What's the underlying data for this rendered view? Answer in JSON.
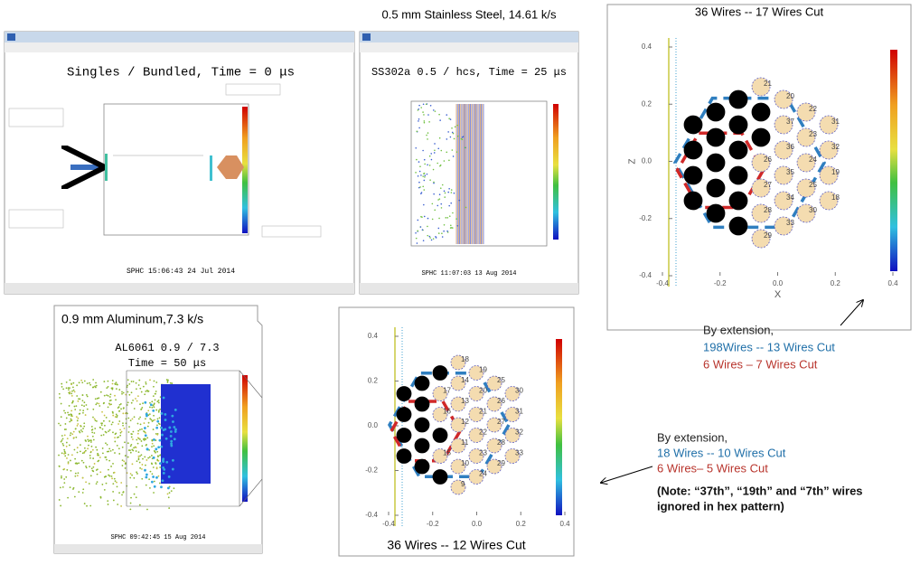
{
  "caption_top": "0.5 mm Stainless Steel, 14.61 k/s",
  "windows": [
    {
      "title": "Singles / Bundled, Time = 0 μs",
      "footer": "SPHC 15:06:43 24 Jul 2014"
    },
    {
      "title": "SS302a 0.5 / hcs, Time = 25 μs",
      "footer": "SPHC 11:07:03 13 Aug 2014"
    },
    {
      "caption": "0.9 mm Aluminum,7.3 k/s",
      "title": "AL6061 0.9 / 7.3",
      "subtitle": "Time = 50 μs",
      "footer": "SPHC 09:42:45 15 Aug 2014"
    }
  ],
  "plots": [
    {
      "title": "36 Wires -- 17 Wires Cut",
      "xlabel": "X",
      "ylabel": "Z",
      "xlim": [
        -0.4,
        0.4
      ],
      "ylim": [
        -0.4,
        0.4
      ],
      "xticks": [
        -0.4,
        -0.2,
        {
          "value": 0,
          "label": "0.0"
        },
        0.2,
        0.4
      ],
      "yticks": [
        -0.4,
        -0.2,
        {
          "value": 0,
          "label": "0.0"
        },
        0.2,
        0.4
      ],
      "wires": {
        "labels": [
          null,
          null,
          null,
          null,
          null,
          null,
          null,
          null,
          null,
          null,
          null,
          null,
          null,
          null,
          null,
          "21",
          null,
          null,
          "26",
          "27",
          "28",
          "29",
          "20",
          "37",
          "36",
          "35",
          "34",
          "33",
          "22",
          "23",
          "24",
          "25",
          "30",
          "31",
          "32",
          "19",
          "18"
        ],
        "cut": [
          true,
          true,
          true,
          true,
          true,
          true,
          true,
          true,
          true,
          true,
          true,
          true,
          true,
          true,
          true,
          false,
          true,
          true,
          false,
          false,
          false,
          false,
          false,
          false,
          false,
          false,
          false,
          false,
          false,
          false,
          false,
          false,
          false,
          false,
          false,
          false,
          false
        ]
      }
    },
    {
      "title": "36 Wires -- 12 Wires Cut",
      "xlim": [
        -0.4,
        0.4
      ],
      "ylim": [
        -0.4,
        0.4
      ],
      "xticks": [
        -0.4,
        -0.2,
        {
          "value": 0,
          "label": "0.0"
        },
        0.2,
        0.4
      ],
      "yticks": [
        -0.4,
        -0.2,
        {
          "value": 0,
          "label": "0.0"
        },
        0.2,
        0.4
      ],
      "wires": {
        "labels": [
          null,
          null,
          null,
          null,
          null,
          null,
          null,
          null,
          null,
          null,
          "17",
          "16",
          null,
          "15",
          null,
          "18",
          "14",
          "13",
          "12",
          "11",
          "10",
          "9",
          "19",
          "20",
          "21",
          "22",
          "23",
          "24",
          "25",
          "26",
          "27",
          "28",
          "29",
          "30",
          "31",
          "32",
          "33"
        ],
        "cut": [
          true,
          true,
          true,
          true,
          true,
          true,
          true,
          true,
          true,
          true,
          false,
          false,
          true,
          false,
          true,
          false,
          false,
          false,
          false,
          false,
          false,
          false,
          false,
          false,
          false,
          false,
          false,
          false,
          false,
          false,
          false,
          false,
          false,
          false,
          false,
          false,
          false
        ]
      }
    }
  ],
  "notes": [
    {
      "lines": [
        "By extension,",
        "198Wires -- 13 Wires Cut",
        "6 Wires – 7 Wires Cut"
      ]
    },
    {
      "lines": [
        "By extension,",
        "18 Wires -- 10 Wires Cut",
        "6 Wires– 5 Wires Cut",
        "(Note: “37th”, “19th” and “7th” wires",
        "ignored in hex pattern)"
      ]
    }
  ]
}
